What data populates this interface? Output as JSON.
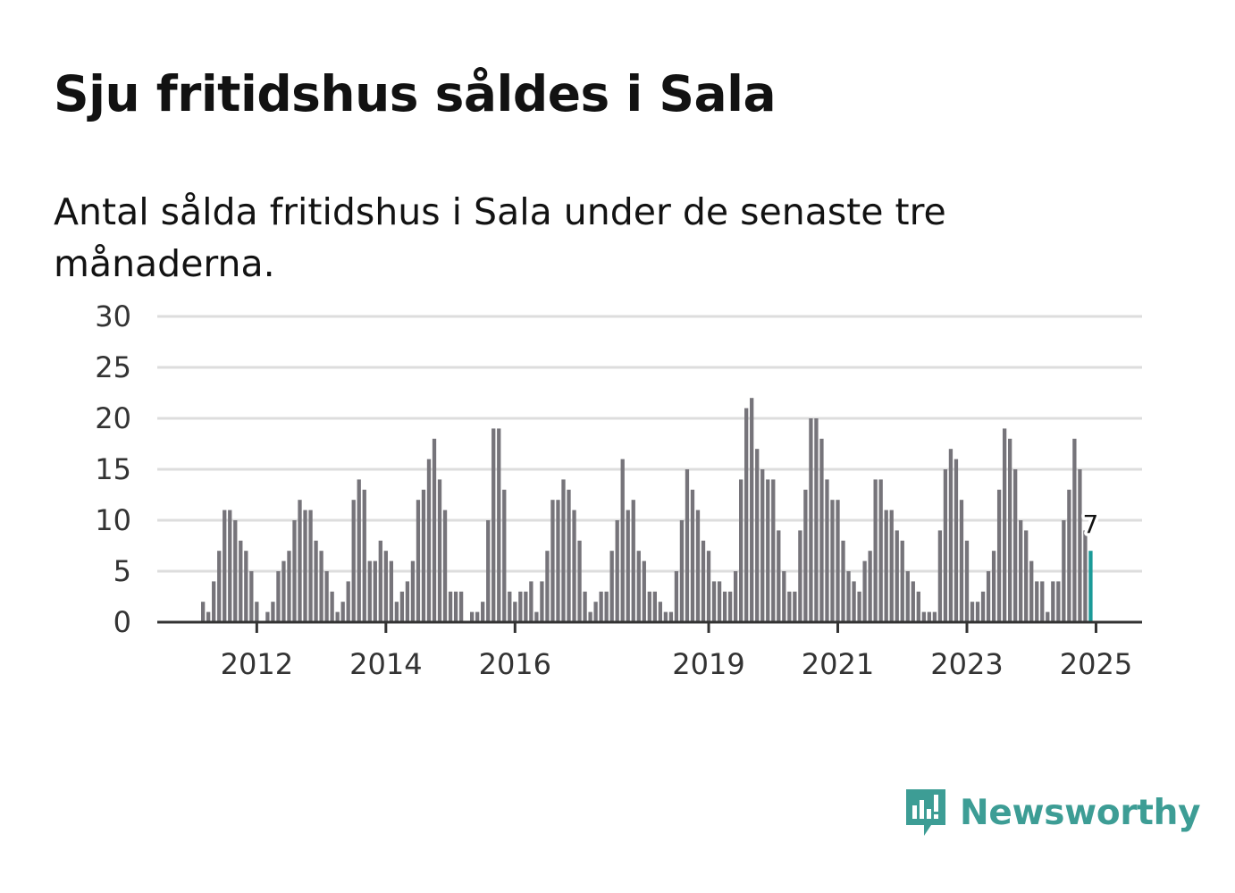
{
  "title": "Sju fritidshus såldes i Sala",
  "subtitle": "Antal sålda fritidshus i Sala under de senaste tre månaderna.",
  "brand": {
    "name": "Newsworthy",
    "color": "#3d9d95",
    "icon": "newsworthy-logo-icon"
  },
  "colors": {
    "bar": "#76747a",
    "highlight": "#1a9a98",
    "grid": "#dddddd",
    "axis": "#333333"
  },
  "chart_data": {
    "type": "bar",
    "start": "2011-03",
    "values": [
      2,
      1,
      4,
      7,
      11,
      11,
      10,
      8,
      7,
      5,
      2,
      0,
      1,
      2,
      5,
      6,
      7,
      10,
      12,
      11,
      11,
      8,
      7,
      5,
      3,
      1,
      2,
      4,
      12,
      14,
      13,
      6,
      6,
      8,
      7,
      6,
      2,
      3,
      4,
      6,
      12,
      13,
      16,
      18,
      14,
      11,
      3,
      3,
      3,
      0,
      1,
      1,
      2,
      10,
      19,
      19,
      13,
      3,
      2,
      3,
      3,
      4,
      1,
      4,
      7,
      12,
      12,
      14,
      13,
      11,
      8,
      3,
      1,
      2,
      3,
      3,
      7,
      10,
      16,
      11,
      12,
      7,
      6,
      3,
      3,
      2,
      1,
      1,
      5,
      10,
      15,
      13,
      11,
      8,
      7,
      4,
      4,
      3,
      3,
      5,
      14,
      21,
      22,
      17,
      15,
      14,
      14,
      9,
      5,
      3,
      3,
      9,
      13,
      20,
      20,
      18,
      14,
      12,
      12,
      8,
      5,
      4,
      3,
      6,
      7,
      14,
      14,
      11,
      11,
      9,
      8,
      5,
      4,
      3,
      1,
      1,
      1,
      9,
      15,
      17,
      16,
      12,
      8,
      2,
      2,
      3,
      5,
      7,
      13,
      19,
      18,
      15,
      10,
      9,
      6,
      4,
      4,
      1,
      4,
      4,
      10,
      13,
      18,
      15,
      9,
      7
    ],
    "highlight_last": true,
    "last_value_label": "7",
    "x_ticks": [
      "2012",
      "2014",
      "2016",
      "2019",
      "2021",
      "2023",
      "2025"
    ],
    "y_ticks": [
      "0",
      "5",
      "10",
      "15",
      "20",
      "25",
      "30"
    ],
    "ylim": [
      0,
      30
    ],
    "xlabel": "",
    "ylabel": "",
    "grid": true,
    "legend": "none"
  }
}
